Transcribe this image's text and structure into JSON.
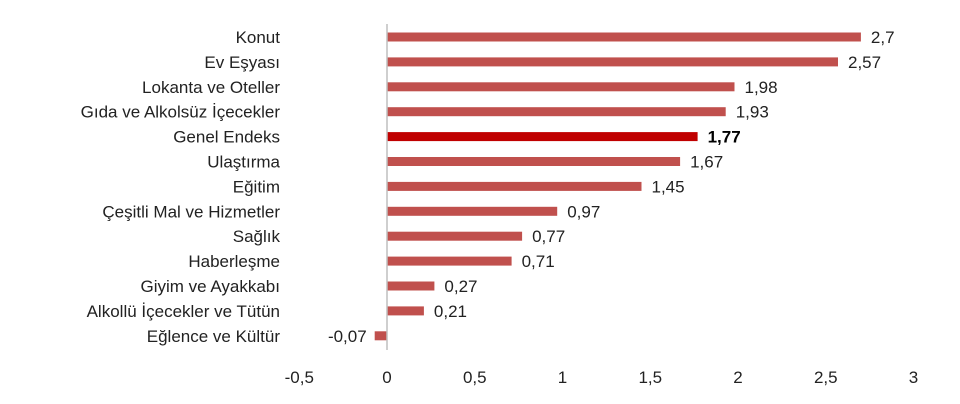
{
  "chart_data": {
    "type": "bar",
    "orientation": "horizontal",
    "categories": [
      "Konut",
      "Ev Eşyası",
      "Lokanta ve Oteller",
      "Gıda ve Alkolsüz İçecekler",
      "Genel Endeks",
      "Ulaştırma",
      "Eğitim",
      "Çeşitli Mal ve Hizmetler",
      "Sağlık",
      "Haberleşme",
      "Giyim ve Ayakkabı",
      "Alkollü İçecekler ve Tütün",
      "Eğlence ve Kültür"
    ],
    "values": [
      2.7,
      2.57,
      1.98,
      1.93,
      1.77,
      1.67,
      1.45,
      0.97,
      0.77,
      0.71,
      0.27,
      0.21,
      -0.07
    ],
    "value_labels": [
      "2,7",
      "2,57",
      "1,98",
      "1,93",
      "1,77",
      "1,67",
      "1,45",
      "0,97",
      "0,77",
      "0,71",
      "0,27",
      "0,21",
      "-0,07"
    ],
    "highlight_category": "Genel Endeks",
    "xlim": [
      -0.5,
      3
    ],
    "x_ticks": [
      -0.5,
      0,
      0.5,
      1,
      1.5,
      2,
      2.5,
      3
    ],
    "x_tick_labels": [
      "-0,5",
      "0",
      "0,5",
      "1",
      "1,5",
      "2",
      "2,5",
      "3"
    ],
    "grid": false,
    "colors": {
      "bar": "#c0504d",
      "highlight_bar": "#c00000",
      "axis": "#bfbfbf"
    }
  }
}
